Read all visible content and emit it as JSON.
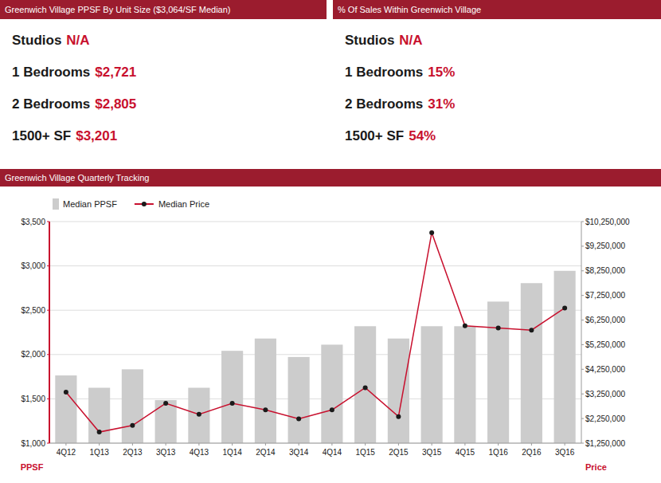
{
  "panels": [
    {
      "title": "Greenwich Village PPSF By Unit Size ($3,064/SF Median)",
      "rows": [
        {
          "label": "Studios",
          "value": {
            "value": null,
            "label": "N/A"
          }
        },
        {
          "label": "1 Bedrooms",
          "value": {
            "value": 2721,
            "label": "$2,721"
          }
        },
        {
          "label": "2 Bedrooms",
          "value": {
            "value": 2805,
            "label": "$2,805"
          }
        },
        {
          "label": "1500+ SF",
          "value": {
            "value": 3201,
            "label": "$3,201"
          }
        }
      ]
    },
    {
      "title": "% Of Sales Within Greenwich Village",
      "rows": [
        {
          "label": "Studios",
          "value": {
            "value": null,
            "label": "N/A"
          }
        },
        {
          "label": "1 Bedrooms",
          "value": {
            "value": 15,
            "label": "15%"
          }
        },
        {
          "label": "2 Bedrooms",
          "value": {
            "value": 31,
            "label": "31%"
          }
        },
        {
          "label": "1500+ SF",
          "value": {
            "value": 54,
            "label": "54%"
          }
        }
      ]
    }
  ],
  "chart_data": {
    "type": "bar",
    "title": "Greenwich Village Quarterly Tracking",
    "categories": [
      "4Q12",
      "1Q13",
      "2Q13",
      "3Q13",
      "4Q13",
      "1Q14",
      "2Q14",
      "3Q14",
      "4Q14",
      "1Q15",
      "2Q15",
      "3Q15",
      "4Q15",
      "1Q16",
      "2Q16",
      "3Q16"
    ],
    "series": [
      {
        "name": "Median PPSF",
        "type": "bar",
        "axis": "y2",
        "color": "#CCCCCC",
        "values": [
          4000000,
          3500000,
          4250000,
          3000000,
          3500000,
          5000000,
          5500000,
          4750000,
          5250000,
          6000000,
          5500000,
          6000000,
          6000000,
          7000000,
          7750000,
          8250000
        ]
      },
      {
        "name": "Median Price",
        "type": "line",
        "axis": "y",
        "color": "#C8102E",
        "marker": "circle",
        "values": [
          1575,
          1125,
          1200,
          1450,
          1325,
          1450,
          1375,
          1275,
          1375,
          1625,
          1300,
          3375,
          2325,
          2300,
          2275,
          2525
        ]
      }
    ],
    "y_label": "PPSF",
    "y2_label": "Price",
    "ylim": [
      1000,
      3500
    ],
    "yticks": [
      {
        "value": 1000,
        "label": "$1,000"
      },
      {
        "value": 1500,
        "label": "$1,500"
      },
      {
        "value": 2000,
        "label": "$2,000"
      },
      {
        "value": 2500,
        "label": "$2,500"
      },
      {
        "value": 3000,
        "label": "$3,000"
      },
      {
        "value": 3500,
        "label": "$3,500"
      }
    ],
    "y2lim": [
      1250000,
      10250000
    ],
    "y2ticks": [
      {
        "value": 1250000,
        "label": "$1,250,000"
      },
      {
        "value": 2250000,
        "label": "$2,250,000"
      },
      {
        "value": 3250000,
        "label": "$3,250,000"
      },
      {
        "value": 4250000,
        "label": "$4,250,000"
      },
      {
        "value": 5250000,
        "label": "$5,250,000"
      },
      {
        "value": 6250000,
        "label": "$6,250,000"
      },
      {
        "value": 7250000,
        "label": "$7,250,000"
      },
      {
        "value": 8250000,
        "label": "$8,250,000"
      },
      {
        "value": 9250000,
        "label": "$9,250,000"
      },
      {
        "value": 10250000,
        "label": "$10,250,000"
      }
    ],
    "grid": true
  }
}
